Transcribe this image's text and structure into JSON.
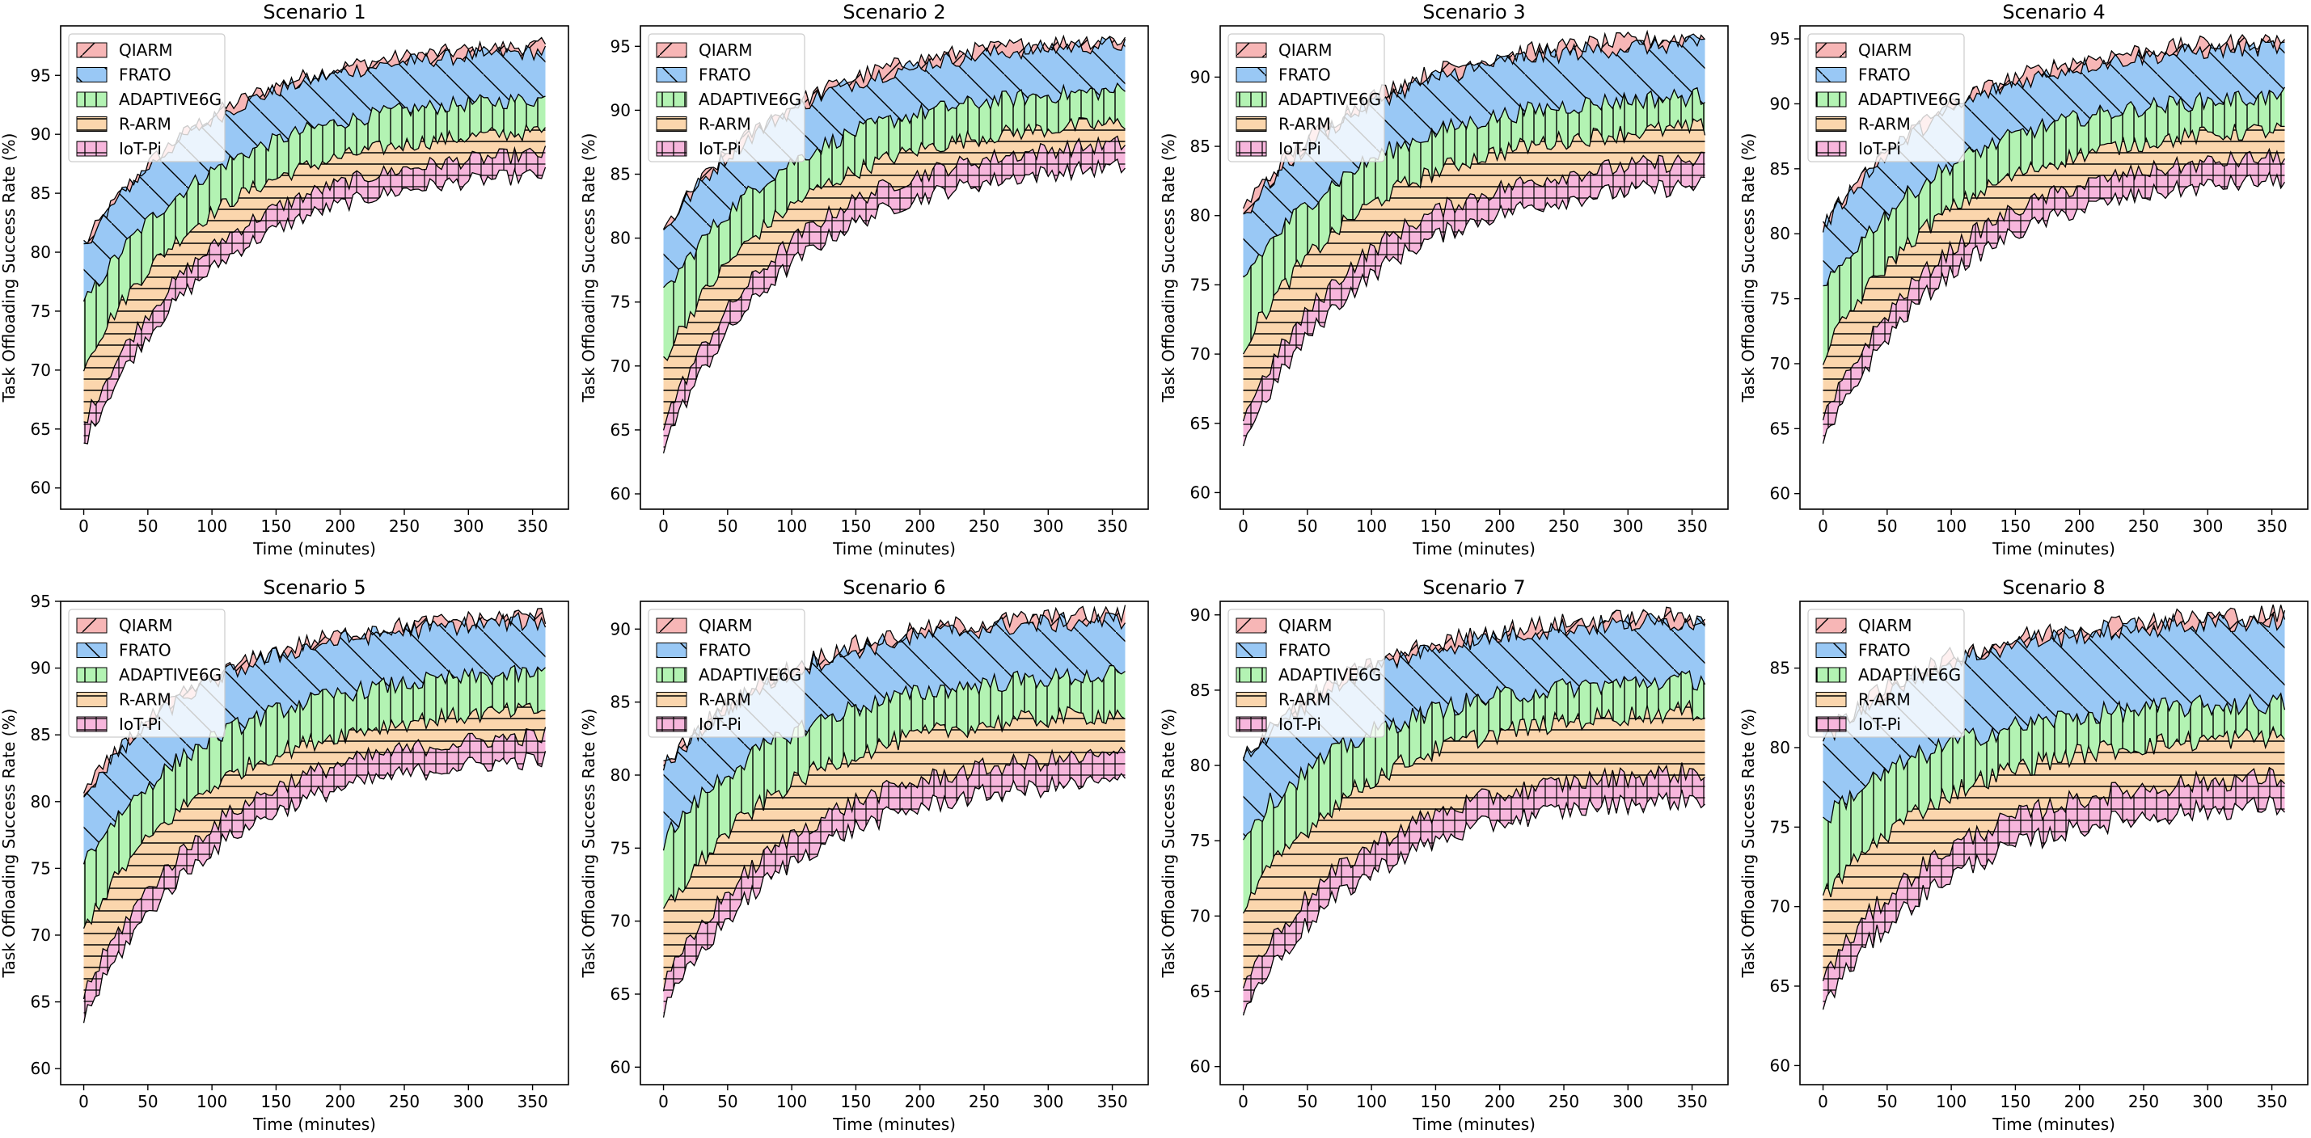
{
  "chart_data": {
    "type": "area",
    "xlabel": "Time (minutes)",
    "ylabel": "Task Offloading Success Rate (%)",
    "x_range": [
      0,
      360
    ],
    "x_step": 3,
    "x_ticks": [
      0,
      50,
      100,
      150,
      200,
      250,
      300,
      350
    ],
    "legend_location": "upper-left",
    "grid": false,
    "model": "start + (final - start) * (1 - exp(-t / tau)) with small noise",
    "series_styles": [
      {
        "name": "QIARM",
        "color": "#f7b6b6",
        "hatch": "diagonal-up"
      },
      {
        "name": "FRATO",
        "color": "#99c8f5",
        "hatch": "diagonal-down"
      },
      {
        "name": "ADAPTIVE6G",
        "color": "#b3f3b3",
        "hatch": "vertical"
      },
      {
        "name": "R-ARM",
        "color": "#fbd6ad",
        "hatch": "horizontal"
      },
      {
        "name": "IoT-Pi",
        "color": "#f7b6dc",
        "hatch": "grid"
      }
    ],
    "panels": [
      {
        "title": "Scenario 1",
        "ylim": [
          58.2,
          99.2
        ],
        "y_ticks": [
          60,
          65,
          70,
          75,
          80,
          85,
          90,
          95
        ],
        "tau": 100,
        "series": [
          {
            "name": "QIARM",
            "start": 80.5,
            "final": 98.0
          },
          {
            "name": "FRATO",
            "start": 80.5,
            "final": 97.5
          },
          {
            "name": "ADAPTIVE6G",
            "start": 75.5,
            "final": 93.5
          },
          {
            "name": "R-ARM",
            "start": 70.5,
            "final": 90.8
          },
          {
            "name": "IoT-Pi",
            "start": 65.5,
            "final": 89.0
          }
        ]
      },
      {
        "title": "Scenario 2",
        "ylim": [
          58.8,
          96.6
        ],
        "y_ticks": [
          60,
          65,
          70,
          75,
          80,
          85,
          90,
          95
        ],
        "tau": 100,
        "series": [
          {
            "name": "QIARM",
            "start": 80.5,
            "final": 96.0
          },
          {
            "name": "FRATO",
            "start": 80.5,
            "final": 95.6
          },
          {
            "name": "ADAPTIVE6G",
            "start": 75.5,
            "final": 92.0
          },
          {
            "name": "R-ARM",
            "start": 70.5,
            "final": 89.5
          },
          {
            "name": "IoT-Pi",
            "start": 65.5,
            "final": 88.0
          }
        ]
      },
      {
        "title": "Scenario 3",
        "ylim": [
          58.8,
          93.7
        ],
        "y_ticks": [
          60,
          65,
          70,
          75,
          80,
          85,
          90
        ],
        "tau": 100,
        "series": [
          {
            "name": "QIARM",
            "start": 80.5,
            "final": 93.2
          },
          {
            "name": "FRATO",
            "start": 80.0,
            "final": 92.8
          },
          {
            "name": "ADAPTIVE6G",
            "start": 75.5,
            "final": 89.0
          },
          {
            "name": "R-ARM",
            "start": 70.5,
            "final": 86.8
          },
          {
            "name": "IoT-Pi",
            "start": 65.5,
            "final": 84.5
          }
        ]
      },
      {
        "title": "Scenario 4",
        "ylim": [
          58.8,
          96.0
        ],
        "y_ticks": [
          60,
          65,
          70,
          75,
          80,
          85,
          90,
          95
        ],
        "tau": 100,
        "series": [
          {
            "name": "QIARM",
            "start": 80.5,
            "final": 95.3
          },
          {
            "name": "FRATO",
            "start": 80.5,
            "final": 94.8
          },
          {
            "name": "ADAPTIVE6G",
            "start": 75.5,
            "final": 91.0
          },
          {
            "name": "R-ARM",
            "start": 70.5,
            "final": 88.5
          },
          {
            "name": "IoT-Pi",
            "start": 65.5,
            "final": 86.5
          }
        ]
      },
      {
        "title": "Scenario 5",
        "ylim": [
          58.8,
          95.0
        ],
        "y_ticks": [
          60,
          65,
          70,
          75,
          80,
          85,
          90,
          95
        ],
        "tau": 100,
        "series": [
          {
            "name": "QIARM",
            "start": 80.5,
            "final": 94.3
          },
          {
            "name": "FRATO",
            "start": 80.5,
            "final": 93.9
          },
          {
            "name": "ADAPTIVE6G",
            "start": 75.5,
            "final": 90.0
          },
          {
            "name": "R-ARM",
            "start": 70.5,
            "final": 87.3
          },
          {
            "name": "IoT-Pi",
            "start": 65.5,
            "final": 85.5
          }
        ]
      },
      {
        "title": "Scenario 6",
        "ylim": [
          58.8,
          91.9
        ],
        "y_ticks": [
          60,
          65,
          70,
          75,
          80,
          85,
          90
        ],
        "tau": 100,
        "series": [
          {
            "name": "QIARM",
            "start": 80.5,
            "final": 91.3
          },
          {
            "name": "FRATO",
            "start": 80.5,
            "final": 90.9
          },
          {
            "name": "ADAPTIVE6G",
            "start": 75.5,
            "final": 87.2
          },
          {
            "name": "R-ARM",
            "start": 70.5,
            "final": 84.6
          },
          {
            "name": "IoT-Pi",
            "start": 65.5,
            "final": 81.8
          }
        ]
      },
      {
        "title": "Scenario 7",
        "ylim": [
          58.8,
          90.9
        ],
        "y_ticks": [
          60,
          65,
          70,
          75,
          80,
          85,
          90
        ],
        "tau": 100,
        "series": [
          {
            "name": "QIARM",
            "start": 80.5,
            "final": 90.2
          },
          {
            "name": "FRATO",
            "start": 80.5,
            "final": 89.9
          },
          {
            "name": "ADAPTIVE6G",
            "start": 75.5,
            "final": 86.0
          },
          {
            "name": "R-ARM",
            "start": 70.5,
            "final": 84.0
          },
          {
            "name": "IoT-Pi",
            "start": 65.5,
            "final": 80.0
          }
        ]
      },
      {
        "title": "Scenario 8",
        "ylim": [
          58.8,
          89.2
        ],
        "y_ticks": [
          60,
          65,
          70,
          75,
          80,
          85
        ],
        "tau": 100,
        "series": [
          {
            "name": "QIARM",
            "start": 80.5,
            "final": 88.6
          },
          {
            "name": "FRATO",
            "start": 80.5,
            "final": 88.2
          },
          {
            "name": "ADAPTIVE6G",
            "start": 75.5,
            "final": 83.0
          },
          {
            "name": "R-ARM",
            "start": 70.5,
            "final": 81.0
          },
          {
            "name": "IoT-Pi",
            "start": 65.5,
            "final": 78.5
          }
        ]
      }
    ]
  }
}
